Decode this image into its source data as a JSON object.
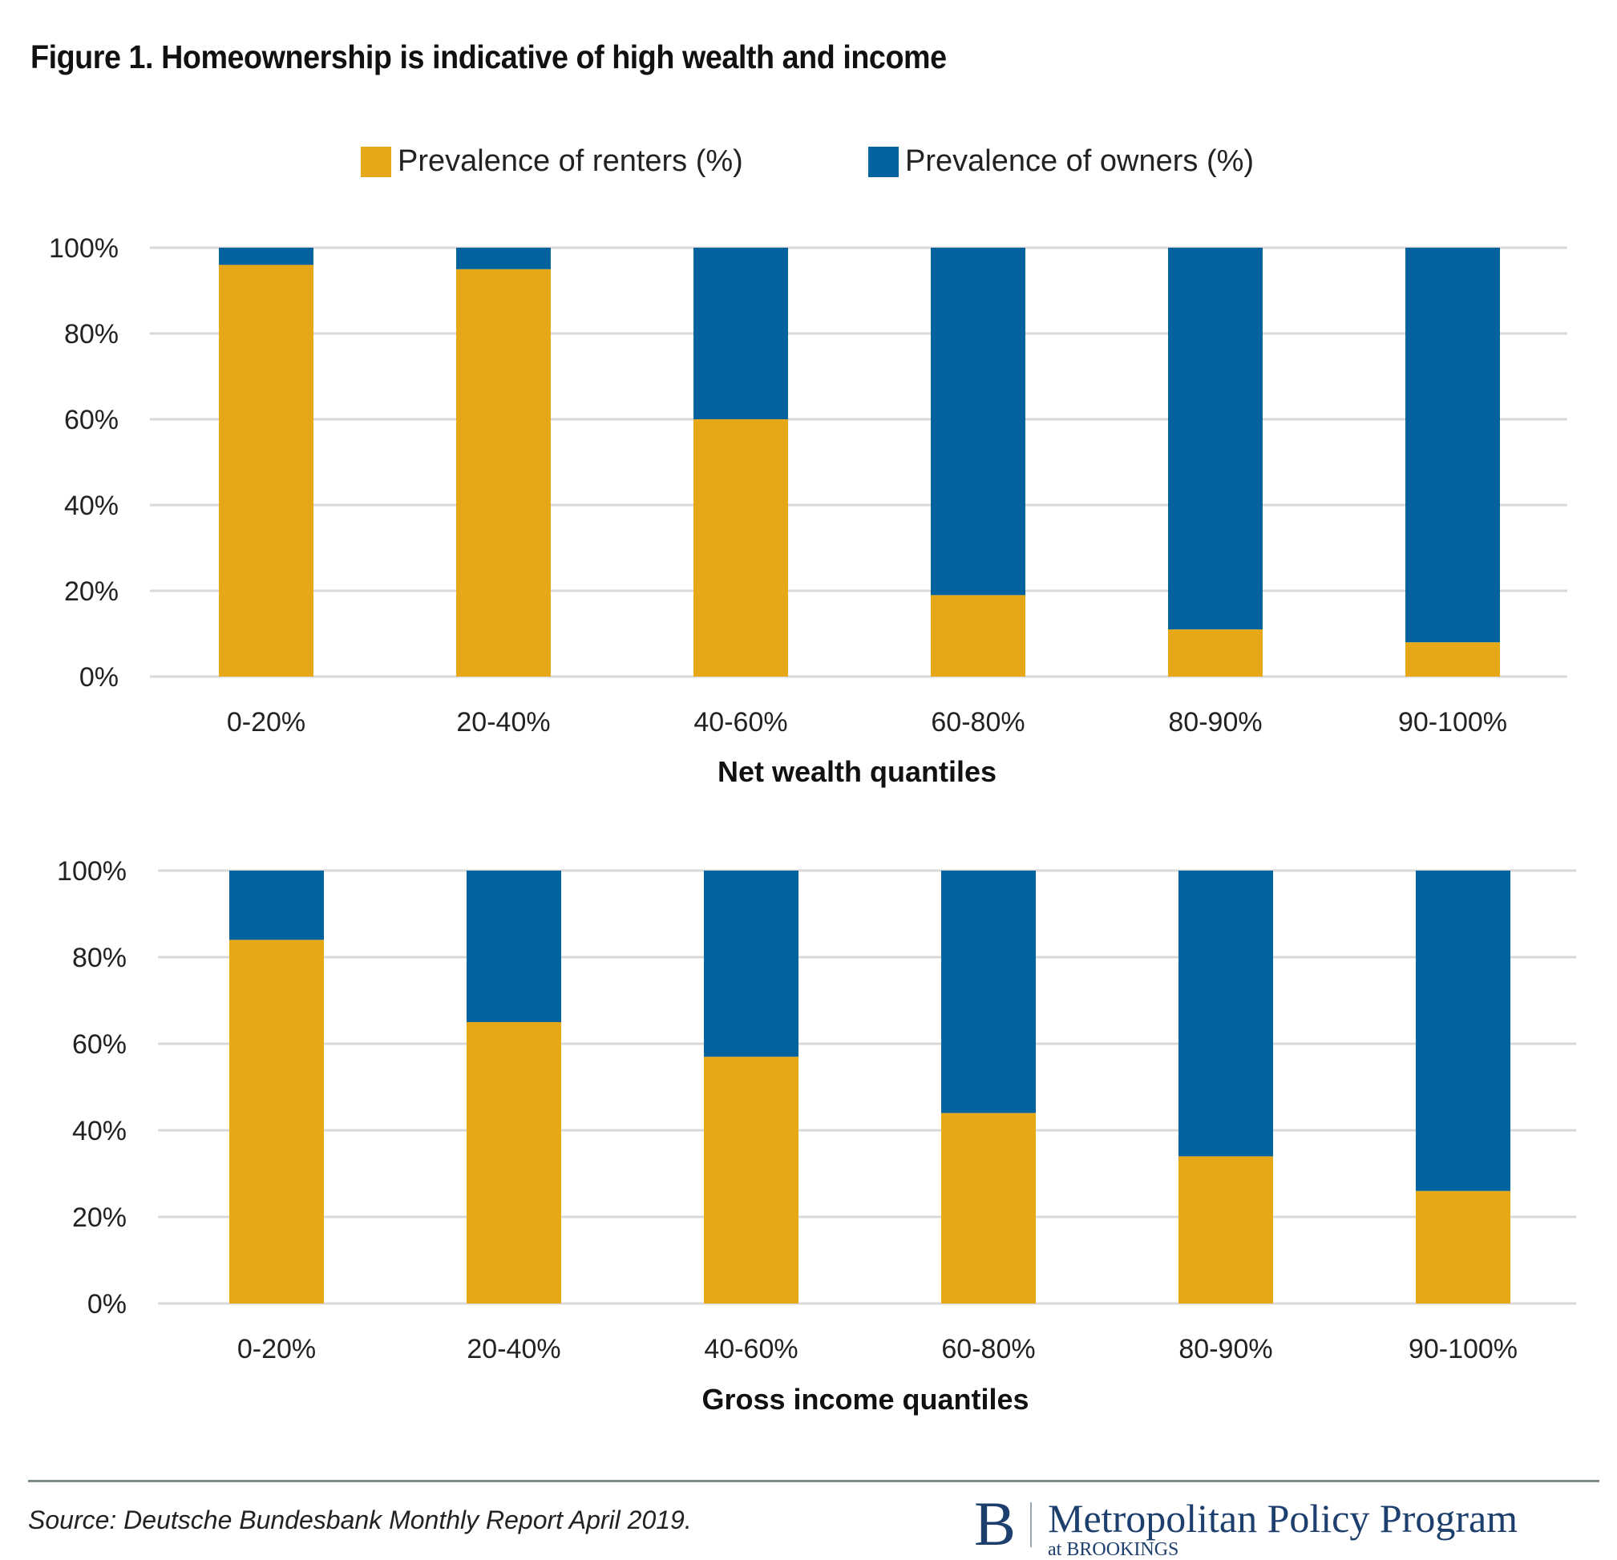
{
  "title": "Figure 1. Homeownership is indicative of high wealth and income",
  "colors": {
    "renters": "#E6A817",
    "owners": "#00639E",
    "grid": "#D9D9D9",
    "logo": "#1D3F6E"
  },
  "legend": [
    {
      "label": "Prevalence of renters (%)",
      "color": "#E6A817"
    },
    {
      "label": "Prevalence of owners (%)",
      "color": "#00639E"
    }
  ],
  "chart_data": [
    {
      "type": "bar",
      "stacked": true,
      "title": "",
      "xlabel": "Net wealth quantiles",
      "ylabel": "",
      "ylim": [
        0,
        100
      ],
      "yticks": [
        "0%",
        "20%",
        "40%",
        "60%",
        "80%",
        "100%"
      ],
      "grid": true,
      "legend_position": "top-center",
      "categories": [
        "0-20%",
        "20-40%",
        "40-60%",
        "60-80%",
        "80-90%",
        "90-100%"
      ],
      "series": [
        {
          "name": "Prevalence of renters (%)",
          "values": [
            96,
            95,
            60,
            19,
            11,
            8
          ]
        },
        {
          "name": "Prevalence of owners (%)",
          "values": [
            4,
            5,
            40,
            81,
            89,
            92
          ]
        }
      ]
    },
    {
      "type": "bar",
      "stacked": true,
      "title": "",
      "xlabel": "Gross income quantiles",
      "ylabel": "",
      "ylim": [
        0,
        100
      ],
      "yticks": [
        "0%",
        "20%",
        "40%",
        "60%",
        "80%",
        "100%"
      ],
      "grid": true,
      "legend_position": "top-center",
      "categories": [
        "0-20%",
        "20-40%",
        "40-60%",
        "60-80%",
        "80-90%",
        "90-100%"
      ],
      "series": [
        {
          "name": "Prevalence of renters (%)",
          "values": [
            84,
            65,
            57,
            44,
            34,
            26
          ]
        },
        {
          "name": "Prevalence of owners (%)",
          "values": [
            16,
            35,
            43,
            56,
            66,
            74
          ]
        }
      ]
    }
  ],
  "footer": {
    "source": "Source: Deutsche Bundesbank Monthly Report April 2019.",
    "logo_letter": "B",
    "logo_name": "Metropolitan Policy Program",
    "logo_sub": "at BROOKINGS"
  }
}
